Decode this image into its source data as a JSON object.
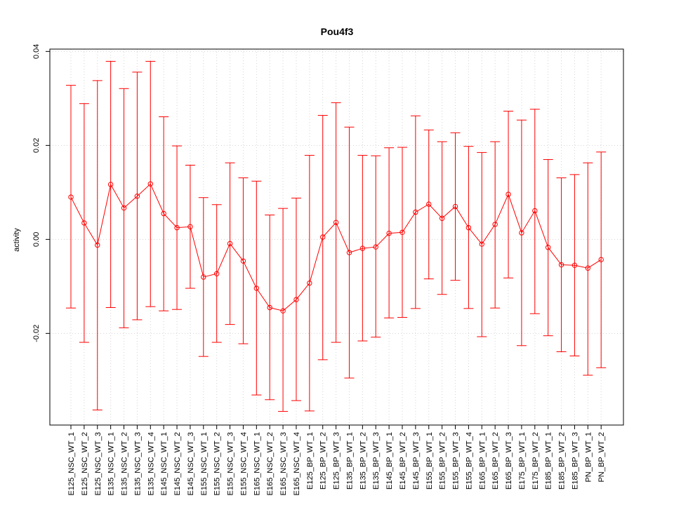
{
  "chart_data": {
    "type": "line",
    "title": "Pou4f3",
    "xlabel": "",
    "ylabel": "activity",
    "ylim": [
      -0.0395,
      0.0405
    ],
    "yticks": [
      0.04,
      0.02,
      0.0,
      -0.02
    ],
    "ytick_labels": [
      "0.04",
      "0.02",
      "0.00",
      "-0.02"
    ],
    "grid": true,
    "series_color": "#ff0000",
    "categories": [
      "E125_NSC_WT_1",
      "E125_NSC_WT_2",
      "E125_NSC_WT_3",
      "E135_NSC_WT_1",
      "E135_NSC_WT_2",
      "E135_NSC_WT_3",
      "E135_NSC_WT_4",
      "E145_NSC_WT_1",
      "E145_NSC_WT_2",
      "E145_NSC_WT_3",
      "E155_NSC_WT_1",
      "E155_NSC_WT_2",
      "E155_NSC_WT_3",
      "E155_NSC_WT_4",
      "E165_NSC_WT_1",
      "E165_NSC_WT_2",
      "E165_NSC_WT_3",
      "E165_NSC_WT_4",
      "E125_BP_WT_1",
      "E125_BP_WT_2",
      "E125_BP_WT_3",
      "E135_BP_WT_1",
      "E135_BP_WT_2",
      "E135_BP_WT_3",
      "E145_BP_WT_1",
      "E145_BP_WT_2",
      "E145_BP_WT_3",
      "E155_BP_WT_1",
      "E155_BP_WT_2",
      "E155_BP_WT_3",
      "E155_BP_WT_4",
      "E165_BP_WT_1",
      "E165_BP_WT_2",
      "E165_BP_WT_3",
      "E175_BP_WT_1",
      "E175_BP_WT_2",
      "E185_BP_WT_1",
      "E185_BP_WT_2",
      "E185_BP_WT_3",
      "PN_BP_WT_1",
      "PN_BP_WT_2"
    ],
    "values": [
      0.009,
      0.0035,
      -0.0012,
      0.0117,
      0.0067,
      0.0092,
      0.0118,
      0.0055,
      0.0025,
      0.0027,
      -0.008,
      -0.0073,
      -0.0009,
      -0.0046,
      -0.0104,
      -0.0145,
      -0.0152,
      -0.0128,
      -0.0093,
      0.0005,
      0.0036,
      -0.0028,
      -0.0019,
      -0.0016,
      0.0013,
      0.0015,
      0.0058,
      0.0075,
      0.0045,
      0.007,
      0.0025,
      -0.001,
      0.0032,
      0.0096,
      0.0014,
      0.0061,
      -0.0017,
      -0.0054,
      -0.0055,
      -0.0061,
      -0.0043
    ],
    "upper": [
      0.0328,
      0.0289,
      0.0338,
      0.0379,
      0.0321,
      0.0356,
      0.0379,
      0.0261,
      0.0199,
      0.0158,
      0.0089,
      0.0074,
      0.0163,
      0.0131,
      0.0124,
      0.0052,
      0.0066,
      0.0088,
      0.0179,
      0.0264,
      0.0291,
      0.0239,
      0.0179,
      0.0178,
      0.0195,
      0.0196,
      0.0263,
      0.0233,
      0.0208,
      0.0227,
      0.0198,
      0.0185,
      0.0208,
      0.0273,
      0.0254,
      0.0277,
      0.017,
      0.0131,
      0.0138,
      0.0163,
      0.0186
    ],
    "lower": [
      -0.0146,
      -0.0219,
      -0.0363,
      -0.0145,
      -0.0188,
      -0.0171,
      -0.0143,
      -0.0152,
      -0.0149,
      -0.0104,
      -0.0249,
      -0.0219,
      -0.0181,
      -0.0222,
      -0.0331,
      -0.0341,
      -0.0366,
      -0.0343,
      -0.0365,
      -0.0256,
      -0.0219,
      -0.0295,
      -0.0216,
      -0.0208,
      -0.0167,
      -0.0166,
      -0.0147,
      -0.0084,
      -0.0117,
      -0.0087,
      -0.0147,
      -0.0207,
      -0.0146,
      -0.0082,
      -0.0226,
      -0.0158,
      -0.0205,
      -0.0239,
      -0.0248,
      -0.0289,
      -0.0273
    ]
  }
}
